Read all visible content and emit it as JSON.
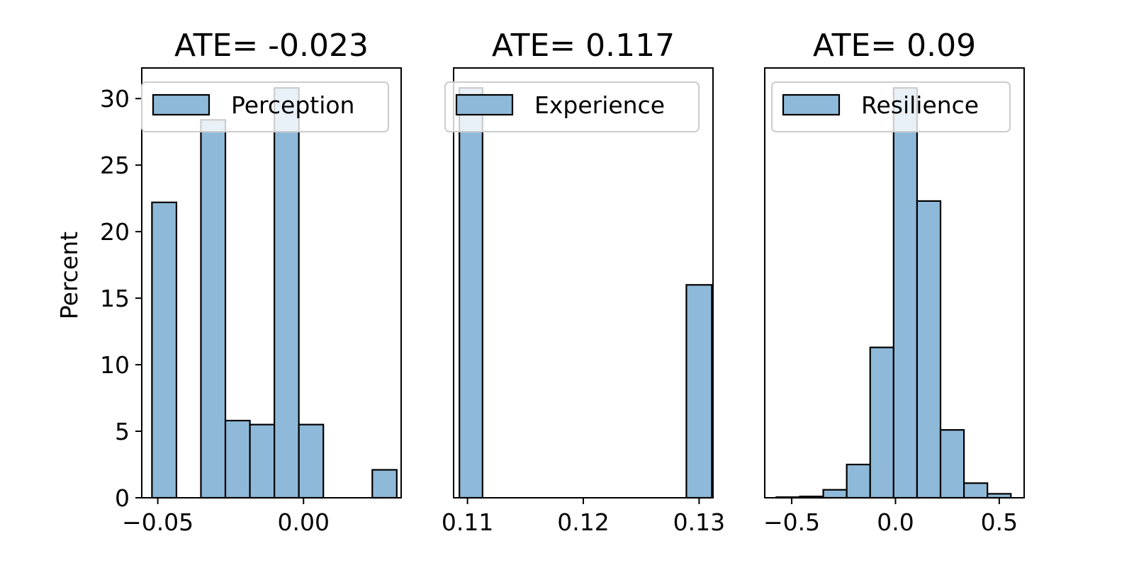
{
  "figure": {
    "ylabel": "Percent"
  },
  "chart_data": [
    {
      "type": "bar",
      "title": "ATE= -0.023",
      "legend": "Perception",
      "legend_position": "top",
      "xlim": [
        -0.0555,
        0.0335
      ],
      "ylim": [
        0,
        32.3
      ],
      "xticks": [
        -0.05,
        0.0
      ],
      "xtick_labels": [
        "−0.05",
        "0.00"
      ],
      "yticks": [
        0,
        5,
        10,
        15,
        20,
        25,
        30
      ],
      "ytick_labels": [
        "0",
        "5",
        "10",
        "15",
        "20",
        "25",
        "30"
      ],
      "bins": [
        {
          "x0": -0.052,
          "x1": -0.0436,
          "value": 22.2
        },
        {
          "x0": -0.0352,
          "x1": -0.0268,
          "value": 28.4
        },
        {
          "x0": -0.0268,
          "x1": -0.0184,
          "value": 5.8
        },
        {
          "x0": -0.0184,
          "x1": -0.01,
          "value": 5.5
        },
        {
          "x0": -0.01,
          "x1": -0.0016,
          "value": 30.8
        },
        {
          "x0": -0.0016,
          "x1": 0.0068,
          "value": 5.5
        },
        {
          "x0": 0.0236,
          "x1": 0.032,
          "value": 2.1
        }
      ],
      "color": "#8fb9d9"
    },
    {
      "type": "bar",
      "title": "ATE= 0.117",
      "legend": "Experience",
      "legend_position": "top",
      "xlim": [
        0.1088,
        0.1312
      ],
      "ylim": [
        0,
        32.3
      ],
      "xticks": [
        0.11,
        0.12,
        0.13
      ],
      "xtick_labels": [
        "0.11",
        "0.12",
        "0.13"
      ],
      "yticks": [],
      "ytick_labels": [],
      "bins": [
        {
          "x0": 0.1093,
          "x1": 0.1113,
          "value": 30.8
        },
        {
          "x0": 0.1289,
          "x1": 0.1311,
          "value": 16.0
        }
      ],
      "color": "#8fb9d9"
    },
    {
      "type": "bar",
      "title": "ATE= 0.09",
      "legend": "Resilience",
      "legend_position": "top",
      "xlim": [
        -0.63,
        0.62
      ],
      "ylim": [
        0,
        32.3
      ],
      "xticks": [
        -0.5,
        0.0,
        0.5
      ],
      "xtick_labels": [
        "−0.5",
        "0.0",
        "0.5"
      ],
      "yticks": [],
      "ytick_labels": [],
      "bins": [
        {
          "x0": -0.574,
          "x1": -0.461,
          "value": 0.05
        },
        {
          "x0": -0.461,
          "x1": -0.348,
          "value": 0.1
        },
        {
          "x0": -0.348,
          "x1": -0.235,
          "value": 0.6
        },
        {
          "x0": -0.235,
          "x1": -0.122,
          "value": 2.5
        },
        {
          "x0": -0.122,
          "x1": -0.009,
          "value": 11.3
        },
        {
          "x0": -0.009,
          "x1": 0.104,
          "value": 30.8
        },
        {
          "x0": 0.104,
          "x1": 0.217,
          "value": 22.3
        },
        {
          "x0": 0.217,
          "x1": 0.33,
          "value": 5.1
        },
        {
          "x0": 0.33,
          "x1": 0.443,
          "value": 1.1
        },
        {
          "x0": 0.443,
          "x1": 0.556,
          "value": 0.3
        }
      ],
      "color": "#8fb9d9"
    }
  ]
}
